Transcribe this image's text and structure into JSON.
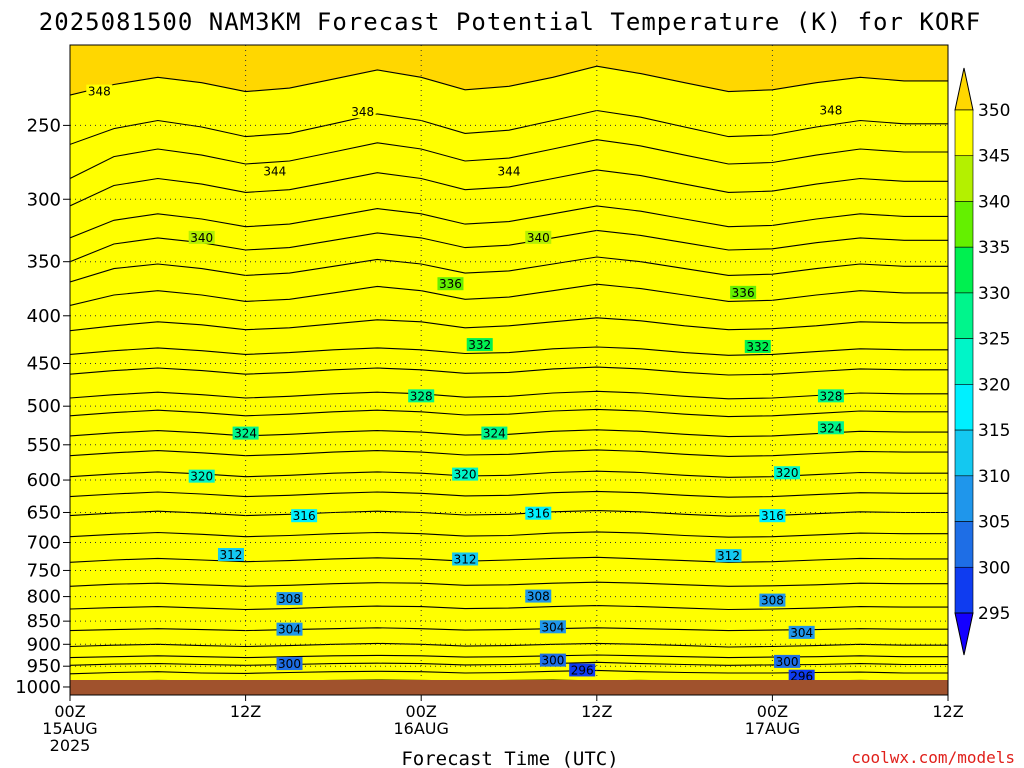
{
  "chart_data": {
    "type": "heatmap",
    "title": "2025081500 NAM3KM Forecast Potential Temperature (K) for KORF",
    "xlabel": "Forecast Time (UTC)",
    "ylabel": "",
    "credit": "coolwx.com/models",
    "x_ticks": [
      {
        "hour": 0,
        "lines": [
          "00Z",
          "15AUG",
          "2025"
        ]
      },
      {
        "hour": 12,
        "lines": [
          "12Z"
        ]
      },
      {
        "hour": 24,
        "lines": [
          "00Z",
          "16AUG"
        ]
      },
      {
        "hour": 36,
        "lines": [
          "12Z"
        ]
      },
      {
        "hour": 48,
        "lines": [
          "00Z",
          "17AUG"
        ]
      },
      {
        "hour": 60,
        "lines": [
          "12Z"
        ]
      }
    ],
    "xlim": [
      0,
      60
    ],
    "y_axis": "pressure (hPa), log scale, inverted",
    "y_ticks": [
      250,
      300,
      350,
      400,
      450,
      500,
      550,
      600,
      650,
      700,
      750,
      800,
      850,
      900,
      950,
      1000
    ],
    "ylim": [
      1020,
      205
    ],
    "grid": "dotted at ticks",
    "colorbar": {
      "ticks": [
        295,
        300,
        305,
        310,
        315,
        320,
        325,
        330,
        335,
        340,
        345,
        350
      ],
      "colors": [
        "#1400ff",
        "#0f3cf0",
        "#1e6ee6",
        "#1f96eb",
        "#14c8f0",
        "#00f0ff",
        "#00f5c8",
        "#00f58c",
        "#00f050",
        "#64f000",
        "#b4f000",
        "#ffff00",
        "#ffd700"
      ],
      "placement": "right"
    },
    "ground_color": "#a0522d",
    "contour_interval": 2,
    "contours": [
      {
        "theta": 296,
        "p": [
          985,
          985,
          984,
          985,
          986,
          985,
          984,
          983,
          984,
          985,
          984,
          983,
          985,
          984,
          985,
          986,
          985,
          985,
          984,
          985,
          985
        ]
      },
      {
        "theta": 298,
        "p": [
          968,
          965,
          963,
          966,
          967,
          965,
          963,
          962,
          963,
          966,
          965,
          962,
          960,
          963,
          965,
          966,
          966,
          965,
          964,
          966,
          966
        ]
      },
      {
        "theta": 300,
        "p": [
          948,
          945,
          944,
          946,
          948,
          946,
          944,
          943,
          944,
          947,
          946,
          944,
          941,
          944,
          946,
          948,
          947,
          946,
          944,
          946,
          946
        ]
      },
      {
        "theta": 302,
        "p": [
          930,
          928,
          926,
          928,
          930,
          928,
          926,
          925,
          926,
          929,
          928,
          926,
          924,
          926,
          928,
          930,
          929,
          928,
          926,
          928,
          928
        ]
      },
      {
        "theta": 304,
        "p": [
          905,
          902,
          900,
          903,
          905,
          903,
          900,
          898,
          900,
          904,
          903,
          900,
          898,
          900,
          903,
          906,
          905,
          903,
          900,
          902,
          902
        ]
      },
      {
        "theta": 306,
        "p": [
          870,
          868,
          866,
          868,
          870,
          868,
          866,
          864,
          866,
          869,
          868,
          866,
          864,
          866,
          868,
          870,
          869,
          868,
          866,
          867,
          867
        ]
      },
      {
        "theta": 308,
        "p": [
          825,
          822,
          820,
          823,
          826,
          824,
          821,
          819,
          820,
          824,
          823,
          820,
          818,
          820,
          823,
          826,
          825,
          823,
          820,
          821,
          821
        ]
      },
      {
        "theta": 310,
        "p": [
          780,
          776,
          774,
          777,
          780,
          778,
          775,
          773,
          774,
          778,
          777,
          774,
          772,
          774,
          777,
          780,
          779,
          777,
          774,
          775,
          775
        ]
      },
      {
        "theta": 312,
        "p": [
          735,
          731,
          728,
          731,
          734,
          732,
          729,
          727,
          729,
          733,
          731,
          728,
          726,
          729,
          732,
          735,
          734,
          731,
          728,
          729,
          729
        ]
      },
      {
        "theta": 314,
        "p": [
          690,
          686,
          683,
          686,
          690,
          688,
          685,
          683,
          685,
          689,
          688,
          684,
          682,
          684,
          688,
          691,
          690,
          687,
          684,
          685,
          685
        ]
      },
      {
        "theta": 316,
        "p": [
          655,
          651,
          648,
          651,
          655,
          653,
          650,
          648,
          650,
          654,
          653,
          649,
          647,
          649,
          653,
          656,
          655,
          652,
          649,
          650,
          650
        ]
      },
      {
        "theta": 318,
        "p": [
          625,
          621,
          618,
          621,
          625,
          623,
          620,
          618,
          620,
          624,
          623,
          619,
          617,
          619,
          623,
          626,
          625,
          622,
          619,
          620,
          620
        ]
      },
      {
        "theta": 320,
        "p": [
          595,
          591,
          588,
          591,
          595,
          593,
          590,
          588,
          590,
          594,
          593,
          589,
          587,
          589,
          593,
          596,
          595,
          592,
          589,
          590,
          590
        ]
      },
      {
        "theta": 322,
        "p": [
          565,
          561,
          558,
          561,
          565,
          563,
          560,
          558,
          560,
          564,
          563,
          559,
          557,
          559,
          563,
          566,
          565,
          562,
          559,
          560,
          560
        ]
      },
      {
        "theta": 324,
        "p": [
          538,
          534,
          531,
          534,
          538,
          536,
          533,
          531,
          533,
          537,
          536,
          532,
          530,
          532,
          536,
          539,
          538,
          535,
          532,
          533,
          533
        ]
      },
      {
        "theta": 326,
        "p": [
          512,
          508,
          505,
          508,
          512,
          510,
          507,
          505,
          507,
          511,
          510,
          506,
          504,
          506,
          510,
          513,
          512,
          509,
          506,
          507,
          507
        ]
      },
      {
        "theta": 328,
        "p": [
          490,
          486,
          483,
          486,
          490,
          488,
          485,
          483,
          485,
          489,
          488,
          484,
          482,
          484,
          488,
          491,
          490,
          487,
          484,
          485,
          485
        ]
      },
      {
        "theta": 330,
        "p": [
          462,
          458,
          455,
          458,
          462,
          460,
          457,
          455,
          457,
          461,
          460,
          456,
          454,
          456,
          460,
          463,
          462,
          459,
          456,
          457,
          457
        ]
      },
      {
        "theta": 332,
        "p": [
          440,
          436,
          433,
          436,
          440,
          438,
          435,
          433,
          435,
          439,
          438,
          434,
          432,
          434,
          438,
          441,
          440,
          437,
          434,
          435,
          435
        ]
      },
      {
        "theta": 334,
        "p": [
          415,
          410,
          406,
          409,
          414,
          412,
          408,
          404,
          406,
          412,
          410,
          406,
          402,
          405,
          410,
          414,
          413,
          410,
          406,
          407,
          407
        ]
      },
      {
        "theta": 336,
        "p": [
          390,
          380,
          376,
          380,
          386,
          384,
          378,
          372,
          376,
          384,
          382,
          376,
          370,
          374,
          380,
          386,
          385,
          380,
          376,
          378,
          378
        ]
      },
      {
        "theta": 338,
        "p": [
          368,
          356,
          352,
          356,
          362,
          360,
          354,
          348,
          352,
          360,
          358,
          352,
          346,
          350,
          356,
          362,
          361,
          356,
          352,
          354,
          354
        ]
      },
      {
        "theta": 340,
        "p": [
          350,
          335,
          330,
          334,
          340,
          338,
          332,
          326,
          330,
          338,
          336,
          330,
          324,
          328,
          334,
          340,
          339,
          334,
          330,
          332,
          332
        ]
      },
      {
        "theta": 342,
        "p": [
          330,
          316,
          311,
          315,
          321,
          319,
          313,
          307,
          311,
          319,
          317,
          311,
          305,
          309,
          315,
          321,
          320,
          315,
          311,
          313,
          313
        ]
      },
      {
        "theta": 344,
        "p": [
          305,
          290,
          285,
          289,
          295,
          293,
          287,
          281,
          285,
          293,
          291,
          285,
          279,
          283,
          289,
          295,
          294,
          289,
          285,
          287,
          287
        ]
      },
      {
        "theta": 346,
        "p": [
          285,
          270,
          265,
          269,
          275,
          273,
          267,
          261,
          265,
          273,
          271,
          265,
          259,
          263,
          269,
          275,
          274,
          269,
          265,
          267,
          267
        ]
      },
      {
        "theta": 348,
        "p": [
          262,
          252,
          247,
          251,
          257,
          255,
          249,
          243,
          247,
          255,
          253,
          247,
          241,
          245,
          251,
          257,
          256,
          251,
          247,
          249,
          249
        ]
      },
      {
        "theta": 350,
        "p": [
          232,
          226,
          222,
          225,
          230,
          228,
          223,
          218,
          222,
          229,
          227,
          222,
          216,
          220,
          225,
          230,
          229,
          225,
          222,
          224,
          224
        ]
      }
    ],
    "contour_labels": [
      {
        "text": "348",
        "hour": 2,
        "p": 230
      },
      {
        "text": "348",
        "hour": 20,
        "p": 242
      },
      {
        "text": "348",
        "hour": 52,
        "p": 241
      },
      {
        "text": "344",
        "hour": 14,
        "p": 280
      },
      {
        "text": "344",
        "hour": 30,
        "p": 280
      },
      {
        "text": "340",
        "hour": 9,
        "p": 330
      },
      {
        "text": "340",
        "hour": 32,
        "p": 330
      },
      {
        "text": "336",
        "hour": 26,
        "p": 370
      },
      {
        "text": "336",
        "hour": 46,
        "p": 378
      },
      {
        "text": "332",
        "hour": 28,
        "p": 430
      },
      {
        "text": "332",
        "hour": 47,
        "p": 432
      },
      {
        "text": "328",
        "hour": 24,
        "p": 488
      },
      {
        "text": "328",
        "hour": 52,
        "p": 488
      },
      {
        "text": "324",
        "hour": 12,
        "p": 535
      },
      {
        "text": "324",
        "hour": 29,
        "p": 535
      },
      {
        "text": "324",
        "hour": 52,
        "p": 528
      },
      {
        "text": "320",
        "hour": 9,
        "p": 595
      },
      {
        "text": "320",
        "hour": 27,
        "p": 592
      },
      {
        "text": "320",
        "hour": 49,
        "p": 590
      },
      {
        "text": "316",
        "hour": 16,
        "p": 656
      },
      {
        "text": "316",
        "hour": 32,
        "p": 652
      },
      {
        "text": "316",
        "hour": 48,
        "p": 656
      },
      {
        "text": "312",
        "hour": 11,
        "p": 722
      },
      {
        "text": "312",
        "hour": 27,
        "p": 730
      },
      {
        "text": "312",
        "hour": 45,
        "p": 724
      },
      {
        "text": "308",
        "hour": 15,
        "p": 805
      },
      {
        "text": "308",
        "hour": 32,
        "p": 800
      },
      {
        "text": "308",
        "hour": 48,
        "p": 808
      },
      {
        "text": "304",
        "hour": 15,
        "p": 868
      },
      {
        "text": "304",
        "hour": 33,
        "p": 863
      },
      {
        "text": "304",
        "hour": 50,
        "p": 875
      },
      {
        "text": "300",
        "hour": 15,
        "p": 945
      },
      {
        "text": "300",
        "hour": 33,
        "p": 937
      },
      {
        "text": "300",
        "hour": 49,
        "p": 940
      },
      {
        "text": "296",
        "hour": 35,
        "p": 960
      },
      {
        "text": "296",
        "hour": 50,
        "p": 975
      }
    ]
  }
}
